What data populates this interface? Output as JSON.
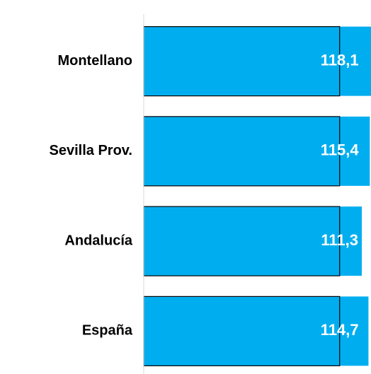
{
  "chart_data": {
    "type": "bar",
    "orientation": "horizontal",
    "categories": [
      "Montellano",
      "Sevilla Prov.",
      "Andalucía",
      "España"
    ],
    "values": [
      118.1,
      115.4,
      111.3,
      114.7
    ],
    "value_labels": [
      "118,1",
      "115,4",
      "111,3",
      "114,7"
    ],
    "color": "#00aeef",
    "reference_value": 100,
    "xlim": [
      0,
      116
    ]
  }
}
